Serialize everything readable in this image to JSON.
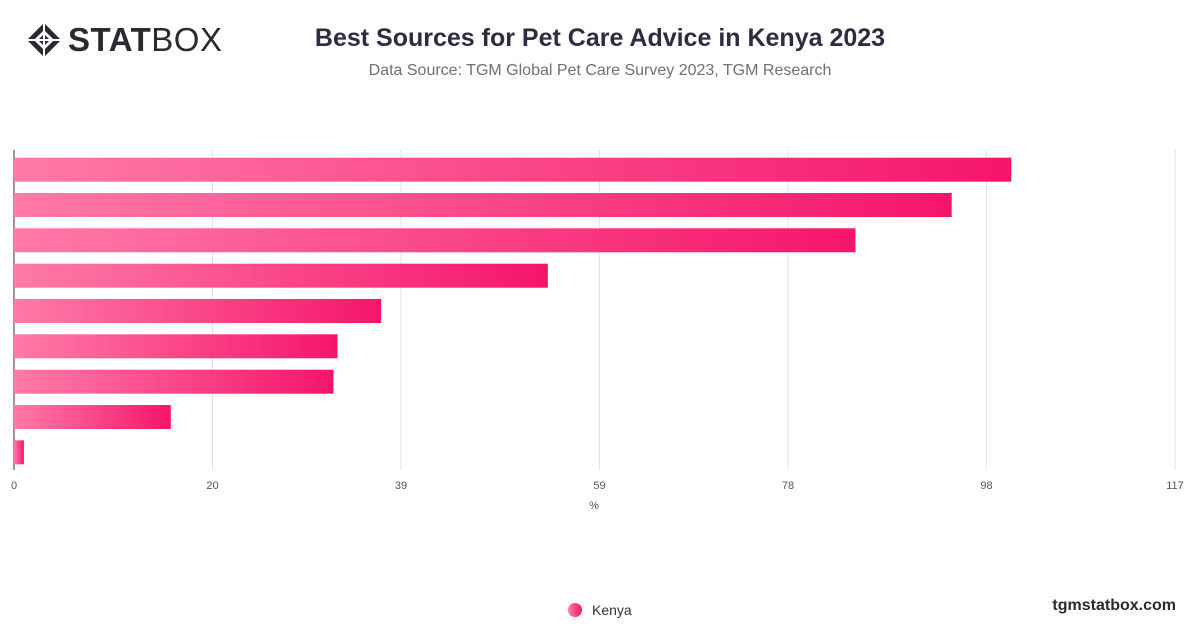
{
  "header": {
    "logo_bold": "STAT",
    "logo_light": "BOX",
    "title": "Best Sources for Pet Care Advice in Kenya 2023",
    "subtitle": "Data Source: TGM Global Pet Care Survey 2023, TGM Research"
  },
  "footer": {
    "brand": "tgmstatbox.com"
  },
  "colors": {
    "bar_start": "#ff7aa8",
    "bar_end": "#f5156b",
    "logo": "#2b2a33"
  },
  "chart_data": {
    "type": "bar",
    "orientation": "horizontal",
    "xlabel": "%",
    "xlim": [
      0,
      117
    ],
    "xticks": [
      0,
      20,
      39,
      59,
      78,
      98,
      117
    ],
    "grid": true,
    "legend_position": "bottom",
    "series": [
      {
        "name": "Kenya",
        "values": [
          100.5,
          94.5,
          84.8,
          53.8,
          37.0,
          32.6,
          32.2,
          15.8,
          1.0
        ]
      }
    ]
  }
}
